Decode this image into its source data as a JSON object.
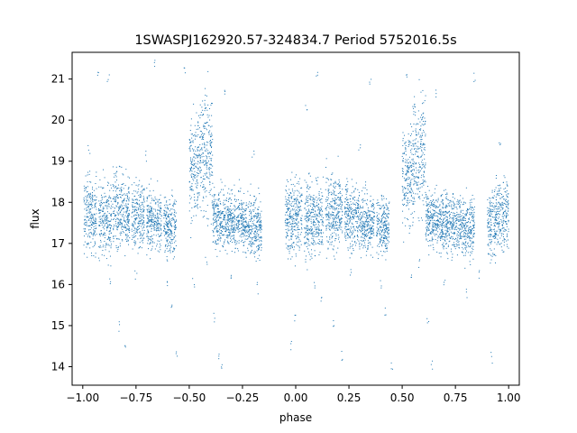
{
  "chart_data": {
    "type": "scatter",
    "title": "1SWASPJ162920.57-324834.7 Period 5752016.5s",
    "xlabel": "phase",
    "ylabel": "flux",
    "xlim": [
      -1.05,
      1.05
    ],
    "ylim": [
      13.55,
      21.65
    ],
    "x_ticks": [
      -1.0,
      -0.75,
      -0.5,
      -0.25,
      0.0,
      0.25,
      0.5,
      0.75,
      1.0
    ],
    "x_tick_labels": [
      "−1.00",
      "−0.75",
      "−0.50",
      "−0.25",
      "0.00",
      "0.25",
      "0.50",
      "0.75",
      "1.00"
    ],
    "y_ticks": [
      14,
      15,
      16,
      17,
      18,
      19,
      20,
      21
    ],
    "y_tick_labels": [
      "14",
      "15",
      "16",
      "17",
      "18",
      "19",
      "20",
      "21"
    ],
    "grid": false,
    "marker_color": "#1f77b4",
    "series": [
      {
        "clusters": [
          {
            "x": [
              -0.995,
              -0.935
            ],
            "y_center": 17.7,
            "y_spread": 0.45
          },
          {
            "x": [
              -0.925,
              -0.865
            ],
            "y_center": 17.6,
            "y_spread": 0.45
          },
          {
            "x": [
              -0.86,
              -0.78
            ],
            "y_center": 17.75,
            "y_spread": 0.45
          },
          {
            "x": [
              -0.77,
              -0.71
            ],
            "y_center": 17.7,
            "y_spread": 0.4
          },
          {
            "x": [
              -0.7,
              -0.63
            ],
            "y_center": 17.55,
            "y_spread": 0.35
          },
          {
            "x": [
              -0.62,
              -0.56
            ],
            "y_center": 17.45,
            "y_spread": 0.35
          },
          {
            "x": [
              -0.5,
              -0.46
            ],
            "y_center": 18.7,
            "y_spread": 0.6
          },
          {
            "x": [
              -0.46,
              -0.39
            ],
            "y_center": 19.2,
            "y_spread": 0.7
          },
          {
            "x": [
              -0.39,
              -0.33
            ],
            "y_center": 17.6,
            "y_spread": 0.35
          },
          {
            "x": [
              -0.33,
              -0.24
            ],
            "y_center": 17.55,
            "y_spread": 0.35
          },
          {
            "x": [
              -0.24,
              -0.16
            ],
            "y_center": 17.4,
            "y_spread": 0.35
          },
          {
            "x": [
              -0.05,
              0.03
            ],
            "y_center": 17.65,
            "y_spread": 0.45
          },
          {
            "x": [
              0.04,
              0.13
            ],
            "y_center": 17.6,
            "y_spread": 0.45
          },
          {
            "x": [
              0.14,
              0.22
            ],
            "y_center": 17.75,
            "y_spread": 0.45
          },
          {
            "x": [
              0.23,
              0.3
            ],
            "y_center": 17.65,
            "y_spread": 0.4
          },
          {
            "x": [
              0.3,
              0.37
            ],
            "y_center": 17.5,
            "y_spread": 0.35
          },
          {
            "x": [
              0.38,
              0.44
            ],
            "y_center": 17.45,
            "y_spread": 0.35
          },
          {
            "x": [
              0.5,
              0.55
            ],
            "y_center": 18.6,
            "y_spread": 0.6
          },
          {
            "x": [
              0.55,
              0.61
            ],
            "y_center": 19.1,
            "y_spread": 0.7
          },
          {
            "x": [
              0.61,
              0.68
            ],
            "y_center": 17.6,
            "y_spread": 0.35
          },
          {
            "x": [
              0.68,
              0.77
            ],
            "y_center": 17.5,
            "y_spread": 0.35
          },
          {
            "x": [
              0.77,
              0.84
            ],
            "y_center": 17.4,
            "y_spread": 0.35
          },
          {
            "x": [
              0.9,
              0.94
            ],
            "y_center": 17.5,
            "y_spread": 0.45
          },
          {
            "x": [
              0.94,
              1.0
            ],
            "y_center": 17.7,
            "y_spread": 0.45
          }
        ],
        "outliers": [
          [
            -0.97,
            19.3
          ],
          [
            -0.93,
            21.1
          ],
          [
            -0.88,
            21.0
          ],
          [
            -0.87,
            16.0
          ],
          [
            -0.83,
            15.0
          ],
          [
            -0.8,
            14.6
          ],
          [
            -0.75,
            16.2
          ],
          [
            -0.7,
            19.1
          ],
          [
            -0.66,
            21.4
          ],
          [
            -0.6,
            16.0
          ],
          [
            -0.58,
            15.5
          ],
          [
            -0.56,
            14.3
          ],
          [
            -0.52,
            21.2
          ],
          [
            -0.48,
            16.0
          ],
          [
            -0.42,
            16.6
          ],
          [
            -0.38,
            15.2
          ],
          [
            -0.36,
            14.2
          ],
          [
            -0.35,
            14.0
          ],
          [
            -0.33,
            20.7
          ],
          [
            -0.3,
            16.2
          ],
          [
            -0.2,
            19.2
          ],
          [
            -0.18,
            15.9
          ],
          [
            -0.02,
            14.5
          ],
          [
            0.0,
            15.2
          ],
          [
            0.05,
            20.4
          ],
          [
            0.09,
            16.0
          ],
          [
            0.1,
            21.2
          ],
          [
            0.12,
            15.6
          ],
          [
            0.18,
            15.0
          ],
          [
            0.22,
            14.3
          ],
          [
            0.26,
            16.3
          ],
          [
            0.3,
            19.3
          ],
          [
            0.35,
            21.0
          ],
          [
            0.4,
            16.0
          ],
          [
            0.42,
            15.4
          ],
          [
            0.45,
            14.0
          ],
          [
            0.52,
            21.2
          ],
          [
            0.54,
            16.3
          ],
          [
            0.58,
            16.5
          ],
          [
            0.62,
            15.2
          ],
          [
            0.64,
            14.0
          ],
          [
            0.66,
            20.7
          ],
          [
            0.7,
            16.1
          ],
          [
            0.8,
            15.8
          ],
          [
            0.84,
            21.0
          ],
          [
            0.86,
            16.2
          ],
          [
            0.92,
            14.2
          ],
          [
            0.96,
            19.4
          ]
        ]
      }
    ]
  }
}
